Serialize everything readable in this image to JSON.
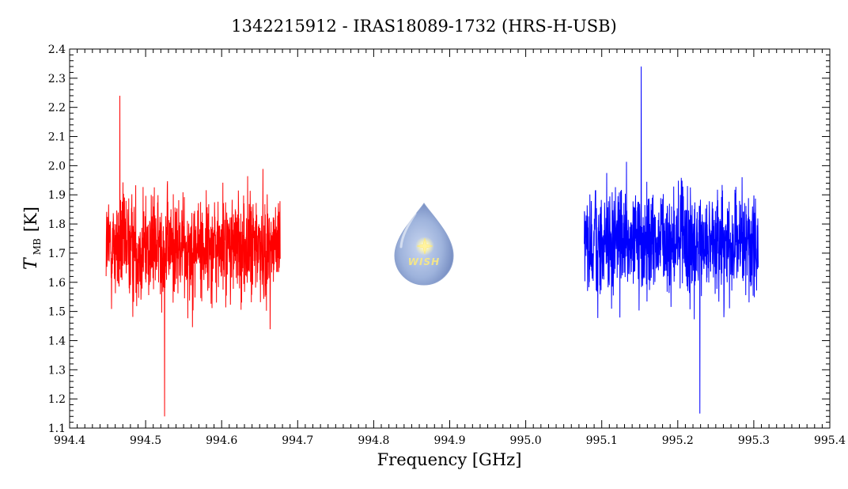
{
  "chart_data": {
    "type": "line",
    "title": "1342215912 - IRAS18089-1732 (HRS-H-USB)",
    "xlabel": "Frequency [GHz]",
    "ylabel_main": "T",
    "ylabel_sub": "MB",
    "ylabel_unit": "[K]",
    "xlim": [
      994.4,
      995.4
    ],
    "ylim": [
      1.1,
      2.4
    ],
    "x_ticks": [
      "994.4",
      "994.5",
      "994.6",
      "994.7",
      "994.8",
      "994.9",
      "995.0",
      "995.1",
      "995.2",
      "995.3",
      "995.4"
    ],
    "y_ticks": [
      "1.1",
      "1.2",
      "1.3",
      "1.4",
      "1.5",
      "1.6",
      "1.7",
      "1.8",
      "1.9",
      "2.0",
      "2.1",
      "2.2",
      "2.3",
      "2.4"
    ],
    "grid": false,
    "series": [
      {
        "color": "#ff0000",
        "x_range": [
          994.448,
          994.677
        ],
        "baseline_mean": 1.72,
        "typical_min": 1.4,
        "typical_max": 2.1,
        "extreme_min": [
          994.525,
          1.14
        ],
        "extreme_max": [
          994.466,
          2.24
        ]
      },
      {
        "color": "#0000ff",
        "x_range": [
          995.077,
          995.306
        ],
        "baseline_mean": 1.73,
        "typical_min": 1.42,
        "typical_max": 2.1,
        "extreme_min": [
          995.229,
          1.15
        ],
        "extreme_max": [
          995.152,
          2.34
        ]
      }
    ]
  },
  "logo": {
    "text": "WISH",
    "icon": "wish-droplet-logo-icon",
    "colors": {
      "body": "#9eb3dc",
      "star": "#fff7b0",
      "text": "#f3e58a"
    }
  }
}
